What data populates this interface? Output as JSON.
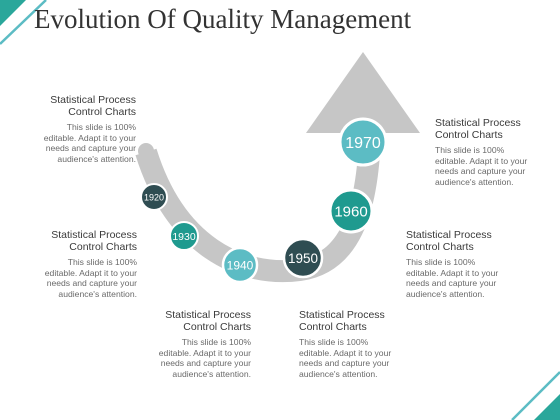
{
  "title": "Evolution Of Quality Management",
  "colors": {
    "arrow": "#c6c6c6",
    "accent_teal": "#2aa79b",
    "accent_light": "#5cbcc4",
    "accent_dark": "#2f4d52",
    "text_head": "#3a3a3a",
    "text_body": "#6a6a6a"
  },
  "milestones": [
    {
      "year": "1920",
      "color": "#2f4d52"
    },
    {
      "year": "1930",
      "color": "#1f9a8f"
    },
    {
      "year": "1940",
      "color": "#5cbcc4"
    },
    {
      "year": "1950",
      "color": "#2f4d52"
    },
    {
      "year": "1960",
      "color": "#1f9a8f"
    },
    {
      "year": "1970",
      "color": "#5cbcc4"
    }
  ],
  "text_blocks": [
    {
      "heading": "Statistical Process Control Charts",
      "body": "This slide is 100% editable. Adapt it to your needs and capture your audience's attention."
    },
    {
      "heading": "Statistical Process Control Charts",
      "body": "This slide is 100% editable. Adapt it to your needs and capture your audience's attention."
    },
    {
      "heading": "Statistical Process Control Charts",
      "body": "This slide is 100% editable. Adapt it to your needs and capture your audience's attention."
    },
    {
      "heading": "Statistical Process Control Charts",
      "body": "This slide is 100% editable. Adapt it to your needs and capture your audience's attention."
    },
    {
      "heading": "Statistical Process Control Charts",
      "body": "This slide is 100% editable. Adapt it to your needs and capture your audience's attention."
    },
    {
      "heading": "Statistical Process Control Charts",
      "body": "This slide is 100% editable. Adapt it to your needs and capture your audience's attention."
    }
  ]
}
